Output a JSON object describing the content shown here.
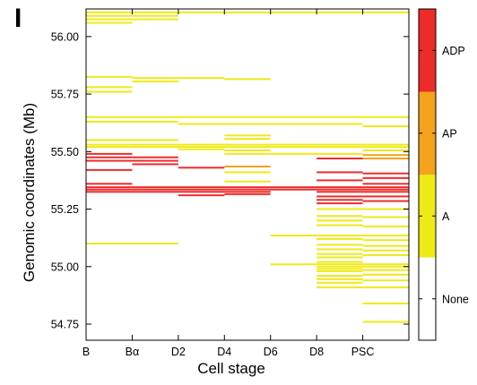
{
  "chart_data": {
    "type": "heatmap",
    "panel_label": "I",
    "xlabel": "Cell stage",
    "ylabel": "Genomic coordinates (Mb)",
    "categories": [
      "B",
      "Bα",
      "D2",
      "D4",
      "D6",
      "D8",
      "PSC"
    ],
    "ylim": [
      54.68,
      56.12
    ],
    "yticks": [
      54.75,
      55.0,
      55.25,
      55.5,
      55.75,
      56.0
    ],
    "ytick_labels": [
      "54.75",
      "55.00",
      "55.25",
      "55.50",
      "55.75",
      "56.00"
    ],
    "grid": false,
    "legend": {
      "placement": "right",
      "entries": [
        {
          "label": "ADP",
          "color": "#ee2b2b"
        },
        {
          "label": "AP",
          "color": "#f5a21d"
        },
        {
          "label": "A",
          "color": "#eeea18"
        },
        {
          "label": "None",
          "color": "#ffffff"
        }
      ]
    },
    "segments": [
      {
        "start": 0,
        "end": 7,
        "y": 56.105,
        "state": "A"
      },
      {
        "start": 0,
        "end": 1,
        "y": 56.09,
        "state": "A"
      },
      {
        "start": 1,
        "end": 2,
        "y": 56.09,
        "state": "A"
      },
      {
        "start": 0,
        "end": 1,
        "y": 56.075,
        "state": "A"
      },
      {
        "start": 1,
        "end": 2,
        "y": 56.075,
        "state": "A"
      },
      {
        "start": 0,
        "end": 1,
        "y": 56.06,
        "state": "A"
      },
      {
        "start": 0,
        "end": 1,
        "y": 55.825,
        "state": "A"
      },
      {
        "start": 1,
        "end": 2,
        "y": 55.82,
        "state": "A"
      },
      {
        "start": 1,
        "end": 2,
        "y": 55.805,
        "state": "A"
      },
      {
        "start": 2,
        "end": 3,
        "y": 55.82,
        "state": "A"
      },
      {
        "start": 3,
        "end": 4,
        "y": 55.815,
        "state": "A"
      },
      {
        "start": 0,
        "end": 1,
        "y": 55.78,
        "state": "A"
      },
      {
        "start": 0,
        "end": 1,
        "y": 55.76,
        "state": "A"
      },
      {
        "start": 0,
        "end": 7,
        "y": 55.65,
        "state": "A"
      },
      {
        "start": 0,
        "end": 2,
        "y": 55.63,
        "state": "A"
      },
      {
        "start": 2,
        "end": 3,
        "y": 55.62,
        "state": "A"
      },
      {
        "start": 3,
        "end": 6,
        "y": 55.62,
        "state": "A"
      },
      {
        "start": 6,
        "end": 7,
        "y": 55.61,
        "state": "A"
      },
      {
        "start": 3,
        "end": 4,
        "y": 55.57,
        "state": "A"
      },
      {
        "start": 3,
        "end": 4,
        "y": 55.555,
        "state": "A"
      },
      {
        "start": 0,
        "end": 2,
        "y": 55.55,
        "state": "A"
      },
      {
        "start": 0,
        "end": 7,
        "y": 55.53,
        "state": "A"
      },
      {
        "start": 0,
        "end": 7,
        "y": 55.52,
        "state": "A"
      },
      {
        "start": 2,
        "end": 3,
        "y": 55.51,
        "state": "A"
      },
      {
        "start": 3,
        "end": 4,
        "y": 55.505,
        "state": "A"
      },
      {
        "start": 6,
        "end": 7,
        "y": 55.505,
        "state": "A"
      },
      {
        "start": 0,
        "end": 1,
        "y": 55.49,
        "state": "ADP"
      },
      {
        "start": 3,
        "end": 4,
        "y": 55.49,
        "state": "A"
      },
      {
        "start": 4,
        "end": 6,
        "y": 55.49,
        "state": "A"
      },
      {
        "start": 6,
        "end": 7,
        "y": 55.485,
        "state": "AP"
      },
      {
        "start": 0,
        "end": 1,
        "y": 55.475,
        "state": "ADP"
      },
      {
        "start": 1,
        "end": 2,
        "y": 55.475,
        "state": "ADP"
      },
      {
        "start": 5,
        "end": 6,
        "y": 55.47,
        "state": "ADP"
      },
      {
        "start": 6,
        "end": 7,
        "y": 55.47,
        "state": "AP"
      },
      {
        "start": 0,
        "end": 1,
        "y": 55.46,
        "state": "ADP"
      },
      {
        "start": 1,
        "end": 2,
        "y": 55.46,
        "state": "ADP"
      },
      {
        "start": 1,
        "end": 2,
        "y": 55.445,
        "state": "ADP"
      },
      {
        "start": 3,
        "end": 4,
        "y": 55.435,
        "state": "AP"
      },
      {
        "start": 2,
        "end": 3,
        "y": 55.43,
        "state": "ADP"
      },
      {
        "start": 0,
        "end": 1,
        "y": 55.42,
        "state": "ADP"
      },
      {
        "start": 3,
        "end": 4,
        "y": 55.41,
        "state": "A"
      },
      {
        "start": 5,
        "end": 6,
        "y": 55.41,
        "state": "ADP"
      },
      {
        "start": 6,
        "end": 7,
        "y": 55.405,
        "state": "ADP"
      },
      {
        "start": 6,
        "end": 7,
        "y": 55.385,
        "state": "ADP"
      },
      {
        "start": 5,
        "end": 6,
        "y": 55.375,
        "state": "ADP"
      },
      {
        "start": 3,
        "end": 4,
        "y": 55.37,
        "state": "A"
      },
      {
        "start": 0,
        "end": 1,
        "y": 55.36,
        "state": "ADP"
      },
      {
        "start": 6,
        "end": 7,
        "y": 55.36,
        "state": "ADP"
      },
      {
        "start": 0,
        "end": 7,
        "y": 55.345,
        "state": "ADP"
      },
      {
        "start": 0,
        "end": 7,
        "y": 55.335,
        "state": "ADP"
      },
      {
        "start": 0,
        "end": 4,
        "y": 55.325,
        "state": "ADP"
      },
      {
        "start": 5,
        "end": 7,
        "y": 55.325,
        "state": "ADP"
      },
      {
        "start": 2,
        "end": 3,
        "y": 55.31,
        "state": "ADP"
      },
      {
        "start": 3,
        "end": 4,
        "y": 55.315,
        "state": "ADP"
      },
      {
        "start": 5,
        "end": 6,
        "y": 55.305,
        "state": "ADP"
      },
      {
        "start": 6,
        "end": 7,
        "y": 55.305,
        "state": "ADP"
      },
      {
        "start": 5,
        "end": 6,
        "y": 55.29,
        "state": "ADP"
      },
      {
        "start": 6,
        "end": 7,
        "y": 55.285,
        "state": "ADP"
      },
      {
        "start": 5,
        "end": 6,
        "y": 55.275,
        "state": "ADP"
      },
      {
        "start": 5,
        "end": 6,
        "y": 55.25,
        "state": "A"
      },
      {
        "start": 6,
        "end": 7,
        "y": 55.25,
        "state": "A"
      },
      {
        "start": 5,
        "end": 6,
        "y": 55.22,
        "state": "A"
      },
      {
        "start": 6,
        "end": 7,
        "y": 55.215,
        "state": "A"
      },
      {
        "start": 5,
        "end": 6,
        "y": 55.2,
        "state": "A"
      },
      {
        "start": 5,
        "end": 6,
        "y": 55.18,
        "state": "A"
      },
      {
        "start": 6,
        "end": 7,
        "y": 55.175,
        "state": "A"
      },
      {
        "start": 4,
        "end": 7,
        "y": 55.135,
        "state": "A"
      },
      {
        "start": 5,
        "end": 6,
        "y": 55.12,
        "state": "A"
      },
      {
        "start": 6,
        "end": 7,
        "y": 55.115,
        "state": "A"
      },
      {
        "start": 0,
        "end": 2,
        "y": 55.1,
        "state": "A"
      },
      {
        "start": 5,
        "end": 6,
        "y": 55.095,
        "state": "A"
      },
      {
        "start": 6,
        "end": 7,
        "y": 55.09,
        "state": "A"
      },
      {
        "start": 5,
        "end": 6,
        "y": 55.075,
        "state": "A"
      },
      {
        "start": 6,
        "end": 7,
        "y": 55.07,
        "state": "A"
      },
      {
        "start": 5,
        "end": 6,
        "y": 55.055,
        "state": "A"
      },
      {
        "start": 6,
        "end": 7,
        "y": 55.05,
        "state": "A"
      },
      {
        "start": 5,
        "end": 6,
        "y": 55.04,
        "state": "A"
      },
      {
        "start": 5,
        "end": 6,
        "y": 55.02,
        "state": "A"
      },
      {
        "start": 4,
        "end": 7,
        "y": 55.01,
        "state": "A"
      },
      {
        "start": 5,
        "end": 6,
        "y": 55.0,
        "state": "A"
      },
      {
        "start": 6,
        "end": 7,
        "y": 55.0,
        "state": "A"
      },
      {
        "start": 5,
        "end": 6,
        "y": 54.99,
        "state": "A"
      },
      {
        "start": 6,
        "end": 7,
        "y": 54.985,
        "state": "A"
      },
      {
        "start": 5,
        "end": 6,
        "y": 54.98,
        "state": "A"
      },
      {
        "start": 6,
        "end": 7,
        "y": 54.965,
        "state": "A"
      },
      {
        "start": 5,
        "end": 6,
        "y": 54.96,
        "state": "A"
      },
      {
        "start": 5,
        "end": 6,
        "y": 54.945,
        "state": "A"
      },
      {
        "start": 6,
        "end": 7,
        "y": 54.94,
        "state": "A"
      },
      {
        "start": 5,
        "end": 6,
        "y": 54.93,
        "state": "A"
      },
      {
        "start": 5,
        "end": 6,
        "y": 54.91,
        "state": "A"
      },
      {
        "start": 6,
        "end": 7,
        "y": 54.91,
        "state": "A"
      },
      {
        "start": 6,
        "end": 7,
        "y": 54.84,
        "state": "A"
      },
      {
        "start": 6,
        "end": 7,
        "y": 54.76,
        "state": "A"
      }
    ]
  }
}
